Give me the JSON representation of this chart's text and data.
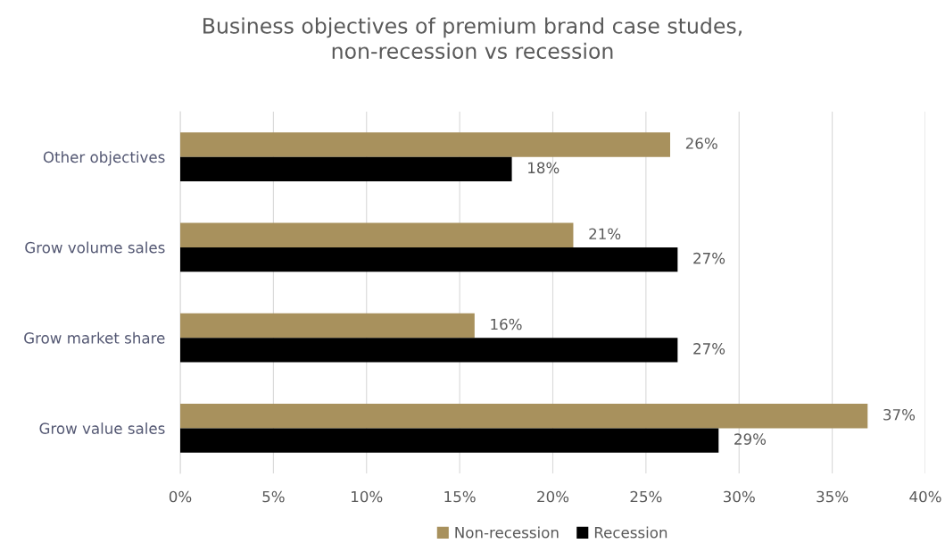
{
  "chart_data": {
    "type": "bar",
    "orientation": "horizontal",
    "title": "Business objectives of premium brand case studes,\nnon-recession vs recession",
    "categories": [
      "Other objectives",
      "Grow volume sales",
      "Grow market share",
      "Grow value sales"
    ],
    "series": [
      {
        "name": "Non-recession",
        "color": "#a8915d",
        "values": [
          26.3,
          21.1,
          15.8,
          36.9
        ],
        "value_labels": [
          "26%",
          "21%",
          "16%",
          "37%"
        ]
      },
      {
        "name": "Recession",
        "color": "#000000",
        "values": [
          17.8,
          26.7,
          26.7,
          28.9
        ],
        "value_labels": [
          "18%",
          "27%",
          "27%",
          "29%"
        ]
      }
    ],
    "xlim": [
      0,
      40
    ],
    "xticks": [
      {
        "value": 0,
        "label": "0%"
      },
      {
        "value": 5,
        "label": "5%"
      },
      {
        "value": 10,
        "label": "10%"
      },
      {
        "value": 15,
        "label": "15%"
      },
      {
        "value": 20,
        "label": "20%"
      },
      {
        "value": 25,
        "label": "25%"
      },
      {
        "value": 30,
        "label": "30%"
      },
      {
        "value": 35,
        "label": "35%"
      },
      {
        "value": 40,
        "label": "40%"
      }
    ],
    "grid": "x",
    "legend": "bottom"
  }
}
